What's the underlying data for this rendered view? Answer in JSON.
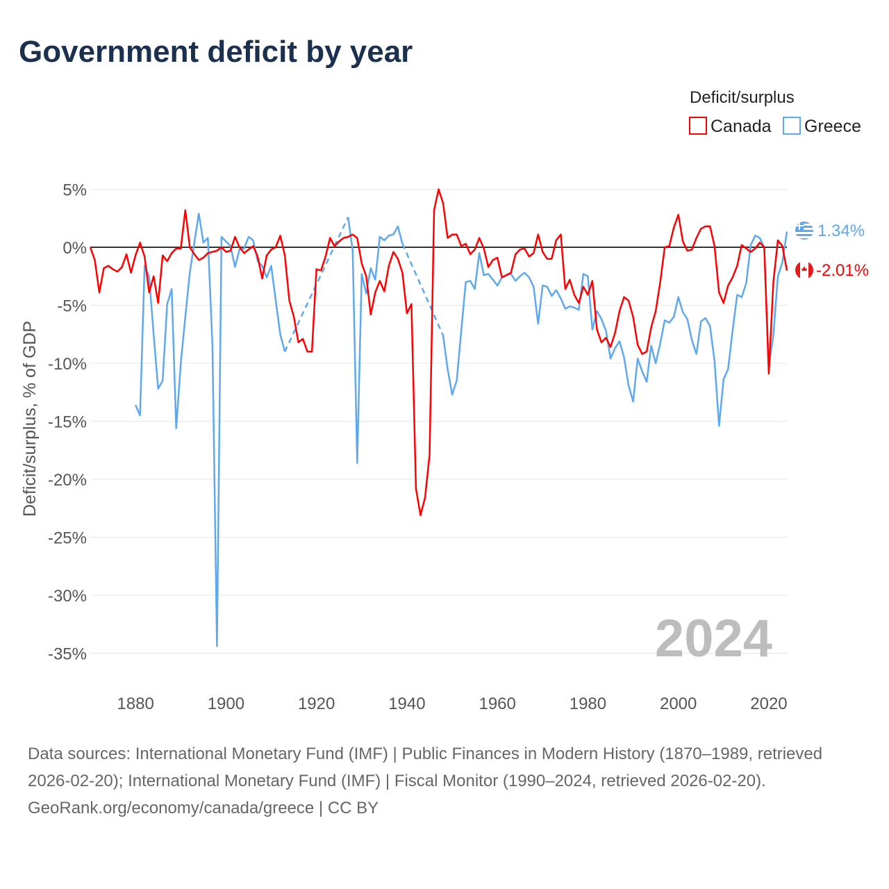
{
  "title": "Government deficit by year",
  "legend": {
    "title": "Deficit/surplus",
    "items": [
      {
        "name": "Canada",
        "color": "#ff0000"
      },
      {
        "name": "Greece",
        "color": "#5da8ee"
      }
    ]
  },
  "watermark_year": "2024",
  "end_labels": {
    "greece": "1.34%",
    "canada": "-2.01%"
  },
  "footer": {
    "sources": "Data sources: International Monetary Fund (IMF) | Public Finances in Modern History (1870–1989, retrieved 2026-02-20); International Monetary Fund (IMF) | Fiscal Monitor (1990–2024, retrieved 2026-02-20).",
    "credit": "GeoRank.org/economy/canada/greece | CC BY"
  },
  "chart_data": {
    "type": "line",
    "title": "Government deficit by year",
    "xlabel": "",
    "ylabel": "Deficit/surplus, % of GDP",
    "x_start": 1870,
    "x_end": 2024,
    "xlim": [
      1870,
      2024
    ],
    "ylim": [
      -35,
      5
    ],
    "x_ticks": [
      "1880",
      "1900",
      "1920",
      "1940",
      "1960",
      "1980",
      "2000",
      "2020"
    ],
    "x_tick_values": [
      1880,
      1900,
      1920,
      1940,
      1960,
      1980,
      2000,
      2020
    ],
    "y_ticks": [
      "5%",
      "0%",
      "-5%",
      "-10%",
      "-15%",
      "-20%",
      "-25%",
      "-30%",
      "-35%"
    ],
    "y_tick_values": [
      5,
      0,
      -5,
      -10,
      -15,
      -20,
      -25,
      -30,
      -35
    ],
    "grid": true,
    "legend_position": "top-right",
    "series": [
      {
        "name": "Canada",
        "color": "#ff0000",
        "values": [
          0.0,
          -1.1,
          -3.9,
          -1.8,
          -1.6,
          -1.9,
          -2.1,
          -1.7,
          -0.6,
          -2.2,
          -0.7,
          0.4,
          -0.8,
          -3.9,
          -2.5,
          -4.8,
          -0.7,
          -1.2,
          -0.5,
          -0.1,
          -0.1,
          3.2,
          0.0,
          -0.6,
          -1.1,
          -0.9,
          -0.5,
          -0.4,
          -0.3,
          0.0,
          -0.4,
          -0.3,
          0.9,
          0.0,
          -0.5,
          -0.2,
          0.1,
          -0.8,
          -2.7,
          -0.7,
          -0.2,
          0.0,
          1.0,
          -0.7,
          -4.6,
          -6.0,
          -8.2,
          -7.9,
          -9.0,
          -9.0,
          -1.9,
          -2.0,
          -0.8,
          0.8,
          0.1,
          0.5,
          0.8,
          0.9,
          1.1,
          0.8,
          -1.4,
          -2.5,
          -5.8,
          -3.9,
          -2.9,
          -3.8,
          -1.6,
          -0.4,
          -1.0,
          -2.2,
          -5.7,
          -4.9,
          -20.8,
          -23.1,
          -21.6,
          -17.9,
          3.2,
          5.0,
          3.8,
          0.8,
          1.1,
          1.1,
          0.1,
          0.3,
          -0.6,
          -0.2,
          0.8,
          -0.1,
          -1.7,
          -1.1,
          -0.9,
          -2.6,
          -2.4,
          -2.2,
          -0.6,
          -0.2,
          -0.1,
          -0.8,
          -0.5,
          1.1,
          -0.4,
          -1.0,
          -1.0,
          0.6,
          1.1,
          -3.6,
          -2.8,
          -4.1,
          -4.8,
          -3.4,
          -4.1,
          -2.9,
          -7.1,
          -8.2,
          -7.8,
          -8.6,
          -7.4,
          -5.5,
          -4.3,
          -4.6,
          -6.0,
          -8.4,
          -9.2,
          -9.0,
          -6.9,
          -5.5,
          -3.0,
          0.0,
          0.1,
          1.7,
          2.8,
          0.5,
          -0.3,
          -0.2,
          0.8,
          1.6,
          1.8,
          1.8,
          0.1,
          -3.9,
          -4.8,
          -3.3,
          -2.6,
          -1.6,
          0.2,
          -0.1,
          -0.4,
          -0.1,
          0.4,
          0.0,
          -10.9,
          -3.0,
          0.6,
          0.1,
          -2.01
        ]
      },
      {
        "name": "Greece",
        "color": "#5da8ee",
        "values": [
          null,
          null,
          null,
          null,
          null,
          null,
          null,
          null,
          null,
          null,
          -13.6,
          -14.5,
          -1.6,
          -2.5,
          -7.5,
          -12.2,
          -11.5,
          -4.9,
          -3.6,
          -15.6,
          -10.0,
          -6.0,
          -2.2,
          0.4,
          2.9,
          0.4,
          0.8,
          -8.5,
          -34.4,
          0.9,
          0.5,
          0.1,
          -1.7,
          -0.2,
          -0.1,
          0.9,
          0.6,
          -1.2,
          -1.6,
          -2.6,
          -1.6,
          -4.6,
          -7.5,
          -9.0,
          null,
          null,
          null,
          null,
          null,
          null,
          null,
          null,
          null,
          null,
          null,
          null,
          null,
          2.6,
          -0.3,
          -18.6,
          -2.3,
          -4.0,
          -1.8,
          -2.8,
          0.9,
          0.6,
          1.0,
          1.1,
          1.8,
          0.3,
          null,
          null,
          null,
          null,
          null,
          null,
          null,
          null,
          -7.6,
          -10.5,
          -12.7,
          -11.5,
          -7.2,
          -3.0,
          -2.9,
          -3.6,
          -0.5,
          -2.4,
          -2.3,
          -2.8,
          -3.3,
          -2.6,
          -2.4,
          -2.3,
          -2.9,
          -2.5,
          -2.2,
          -2.6,
          -3.4,
          -6.6,
          -3.3,
          -3.4,
          -4.2,
          -3.7,
          -4.4,
          -5.3,
          -5.1,
          -5.2,
          -5.4,
          -2.3,
          -2.5,
          -7.1,
          -5.5,
          -6.2,
          -7.2,
          -9.6,
          -8.7,
          -8.1,
          -9.5,
          -11.9,
          -13.3,
          -9.6,
          -10.7,
          -11.6,
          -8.5,
          -10.0,
          -8.3,
          -6.3,
          -6.5,
          -6.0,
          -4.3,
          -5.6,
          -6.2,
          -8.0,
          -9.2,
          -6.4,
          -6.1,
          -6.8,
          -9.8,
          -15.4,
          -11.4,
          -10.5,
          -7.2,
          -4.1,
          -4.3,
          -3.1,
          0.2,
          1.0,
          0.8,
          0.0,
          -10.3,
          -7.6,
          -2.5,
          -1.3,
          1.34
        ]
      }
    ]
  }
}
